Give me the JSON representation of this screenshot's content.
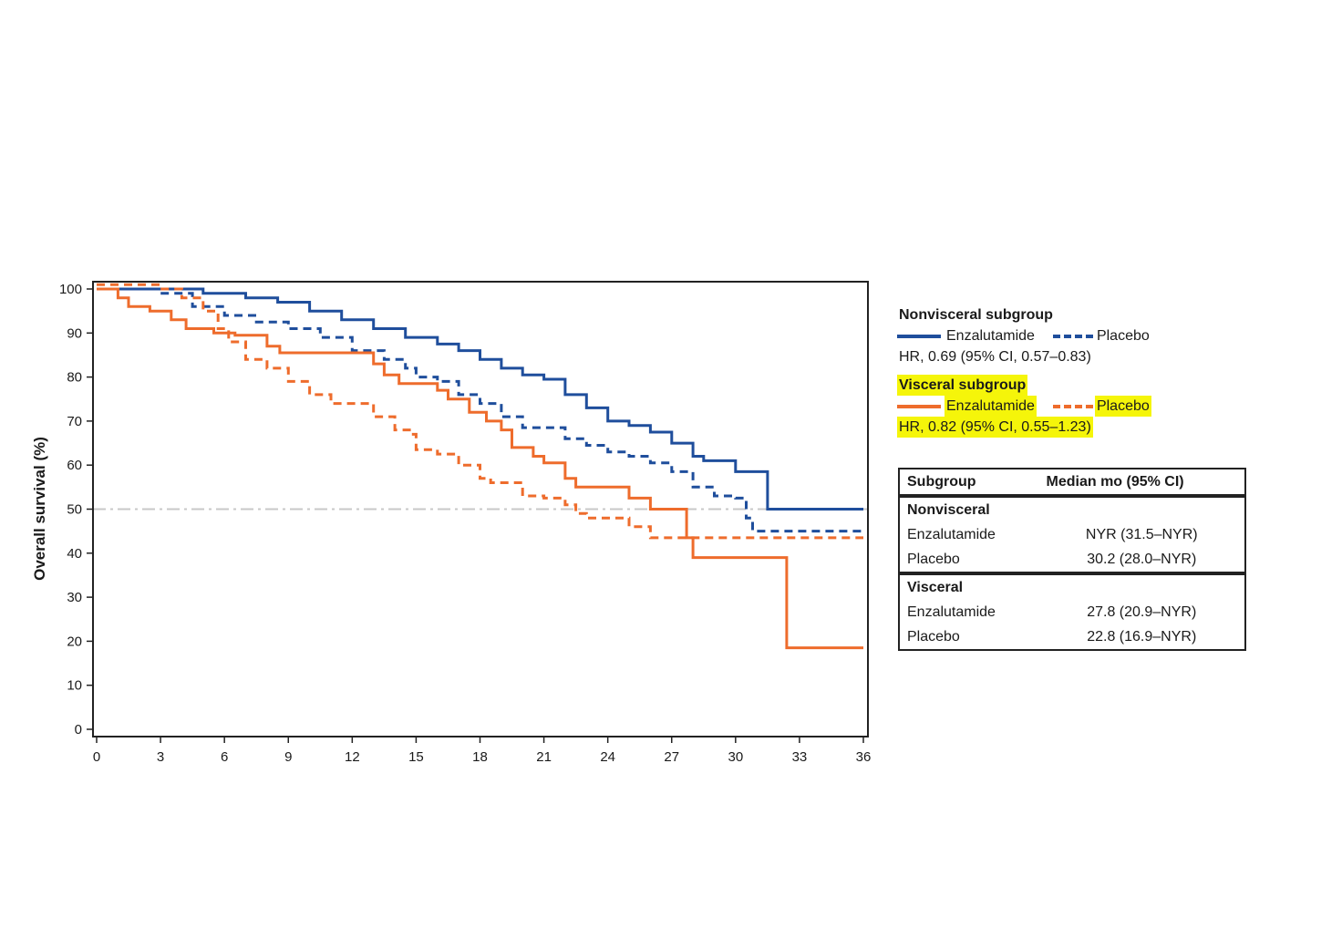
{
  "chart_data": {
    "type": "line",
    "ylabel": "Overall survival (%)",
    "xlabel": "",
    "xlim": [
      0,
      36
    ],
    "ylim": [
      0,
      100
    ],
    "x_ticks": [
      0,
      3,
      6,
      9,
      12,
      15,
      18,
      21,
      24,
      27,
      30,
      33,
      36
    ],
    "y_ticks": [
      0,
      10,
      20,
      30,
      40,
      50,
      60,
      70,
      80,
      90,
      100
    ],
    "reference_line": {
      "y": 50,
      "style": "dash-dot",
      "color": "#c8c8c8"
    },
    "series": [
      {
        "key": "nonvisceral_enzalutamide",
        "group": "Nonvisceral subgroup",
        "name": "Enzalutamide",
        "color": "#1f4e9c",
        "dash": false,
        "points": [
          [
            0,
            100
          ],
          [
            3,
            100
          ],
          [
            5,
            99
          ],
          [
            7,
            98
          ],
          [
            8.5,
            97
          ],
          [
            10,
            95
          ],
          [
            11.5,
            93
          ],
          [
            13,
            91
          ],
          [
            14.5,
            89
          ],
          [
            16,
            87.5
          ],
          [
            17,
            86
          ],
          [
            18,
            84
          ],
          [
            19,
            82
          ],
          [
            20,
            80.5
          ],
          [
            21,
            79.5
          ],
          [
            22,
            76
          ],
          [
            23,
            73
          ],
          [
            24,
            70
          ],
          [
            25,
            69
          ],
          [
            26,
            67.5
          ],
          [
            27,
            65
          ],
          [
            28,
            62
          ],
          [
            28.5,
            61
          ],
          [
            30,
            58.5
          ],
          [
            31.5,
            50
          ],
          [
            36,
            50
          ]
        ]
      },
      {
        "key": "nonvisceral_placebo",
        "group": "Nonvisceral subgroup",
        "name": "Placebo",
        "color": "#1f4e9c",
        "dash": true,
        "points": [
          [
            0,
            100
          ],
          [
            3,
            99
          ],
          [
            4.5,
            96
          ],
          [
            6,
            94
          ],
          [
            7.5,
            92.5
          ],
          [
            9,
            91
          ],
          [
            10.5,
            89
          ],
          [
            12,
            86
          ],
          [
            13.5,
            84
          ],
          [
            14.5,
            82
          ],
          [
            15,
            80
          ],
          [
            16,
            79
          ],
          [
            17,
            76
          ],
          [
            18,
            74
          ],
          [
            19,
            71
          ],
          [
            20,
            68.5
          ],
          [
            21,
            68.5
          ],
          [
            22,
            66
          ],
          [
            23,
            64.5
          ],
          [
            24,
            63
          ],
          [
            25,
            62
          ],
          [
            26,
            60.5
          ],
          [
            27,
            58.5
          ],
          [
            28,
            55
          ],
          [
            29,
            53
          ],
          [
            30,
            52.5
          ],
          [
            30.5,
            48
          ],
          [
            30.8,
            45
          ],
          [
            36,
            45
          ]
        ]
      },
      {
        "key": "visceral_enzalutamide",
        "group": "Visceral subgroup",
        "name": "Enzalutamide",
        "color": "#ee6c2c",
        "dash": false,
        "points": [
          [
            0,
            100
          ],
          [
            1,
            98
          ],
          [
            1.5,
            96
          ],
          [
            2.5,
            95
          ],
          [
            3.5,
            93
          ],
          [
            4.2,
            91
          ],
          [
            5,
            91
          ],
          [
            5.5,
            90
          ],
          [
            6.5,
            89.5
          ],
          [
            8,
            87
          ],
          [
            8.6,
            85.5
          ],
          [
            12,
            85.5
          ],
          [
            13,
            83
          ],
          [
            13.5,
            80.5
          ],
          [
            14.2,
            78.5
          ],
          [
            16,
            77
          ],
          [
            16.5,
            75
          ],
          [
            17.5,
            72
          ],
          [
            18.3,
            70
          ],
          [
            19,
            68
          ],
          [
            19.5,
            64
          ],
          [
            20.5,
            62
          ],
          [
            21,
            60.5
          ],
          [
            22,
            57
          ],
          [
            22.5,
            55
          ],
          [
            24,
            55
          ],
          [
            25,
            52.5
          ],
          [
            26,
            50
          ],
          [
            27.5,
            50
          ],
          [
            27.7,
            43.5
          ],
          [
            28,
            39
          ],
          [
            32.3,
            39
          ],
          [
            32.4,
            18.5
          ],
          [
            36,
            18.5
          ]
        ]
      },
      {
        "key": "visceral_placebo",
        "group": "Visceral subgroup",
        "name": "Placebo",
        "color": "#ee6c2c",
        "dash": true,
        "points": [
          [
            0,
            101
          ],
          [
            2,
            101
          ],
          [
            3,
            100
          ],
          [
            4,
            98
          ],
          [
            5,
            95
          ],
          [
            5.7,
            91
          ],
          [
            6.2,
            88
          ],
          [
            7,
            84
          ],
          [
            8,
            82
          ],
          [
            9,
            79
          ],
          [
            10,
            76
          ],
          [
            11,
            74
          ],
          [
            12,
            74
          ],
          [
            13,
            71
          ],
          [
            14,
            68
          ],
          [
            14.8,
            67
          ],
          [
            15,
            63.5
          ],
          [
            16,
            62.5
          ],
          [
            17,
            60
          ],
          [
            18,
            57
          ],
          [
            18.5,
            56
          ],
          [
            19.5,
            56
          ],
          [
            20,
            53
          ],
          [
            21,
            52.5
          ],
          [
            22,
            51
          ],
          [
            22.5,
            49
          ],
          [
            23,
            48
          ],
          [
            25,
            46
          ],
          [
            26,
            43.5
          ],
          [
            36,
            43.5
          ]
        ]
      }
    ],
    "legend": [
      {
        "title": "Nonvisceral subgroup",
        "highlighted": false,
        "items": [
          {
            "label": "Enzalutamide",
            "series": "nonvisceral_enzalutamide"
          },
          {
            "label": "Placebo",
            "series": "nonvisceral_placebo"
          }
        ],
        "hr": "HR, 0.69 (95% CI, 0.57–0.83)"
      },
      {
        "title": "Visceral subgroup",
        "highlighted": true,
        "items": [
          {
            "label": "Enzalutamide",
            "series": "visceral_enzalutamide"
          },
          {
            "label": "Placebo",
            "series": "visceral_placebo"
          }
        ],
        "hr": "HR, 0.82 (95% CI, 0.55–1.23)"
      }
    ],
    "highlight_color": "#f5f50a"
  },
  "median_table": {
    "headers": [
      "Subgroup",
      "Median mo (95% CI)"
    ],
    "sections": [
      {
        "name": "Nonvisceral",
        "rows": [
          [
            "Enzalutamide",
            "NYR (31.5–NYR)"
          ],
          [
            "Placebo",
            "30.2 (28.0–NYR)"
          ]
        ]
      },
      {
        "name": "Visceral",
        "rows": [
          [
            "Enzalutamide",
            "27.8 (20.9–NYR)"
          ],
          [
            "Placebo",
            "22.8 (16.9–NYR)"
          ]
        ]
      }
    ]
  }
}
